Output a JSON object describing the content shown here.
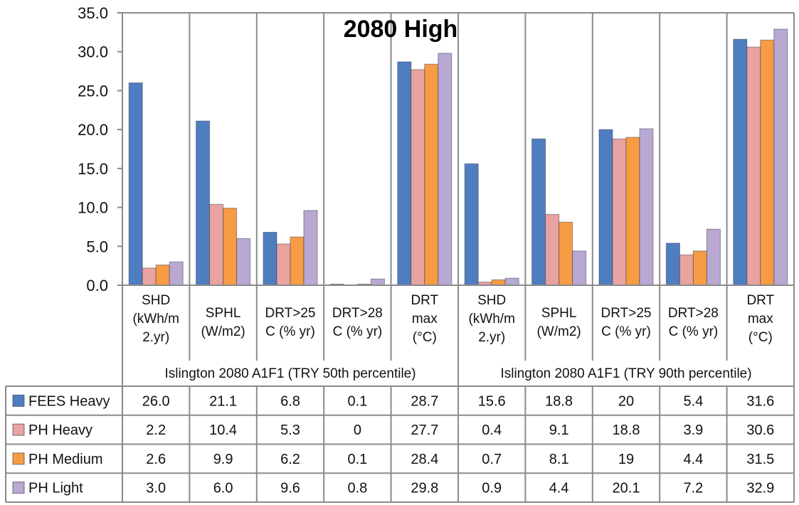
{
  "chart_data": {
    "type": "bar",
    "title": "2080 High",
    "ylim": [
      0,
      35
    ],
    "yticks": [
      "0.0",
      "5.0",
      "10.0",
      "15.0",
      "20.0",
      "25.0",
      "30.0",
      "35.0"
    ],
    "grid": "vertical category separators",
    "categories": [
      [
        "SHD",
        "(kWh/m",
        "2.yr)"
      ],
      [
        "SPHL",
        "(W/m2)"
      ],
      [
        "DRT>25",
        "C (% yr)"
      ],
      [
        "DRT>28",
        "C (% yr)"
      ],
      [
        "DRT",
        "max",
        "(°C)"
      ],
      [
        "SHD",
        "(kWh/m",
        "2.yr)"
      ],
      [
        "SPHL",
        "(W/m2)"
      ],
      [
        "DRT>25",
        "C (% yr)"
      ],
      [
        "DRT>28",
        "C  (% yr)"
      ],
      [
        "DRT",
        "max",
        "(°C)"
      ]
    ],
    "groups": [
      "Islington 2080 A1F1 (TRY 50th percentile)",
      "Islington 2080 A1F1 (TRY 90th percentile)"
    ],
    "series": [
      {
        "name": "FEES Heavy",
        "color": "#4f7ec0",
        "values": [
          26.0,
          21.1,
          6.8,
          0.1,
          28.7,
          15.6,
          18.8,
          20,
          5.4,
          31.6
        ],
        "labels": [
          "26.0",
          "21.1",
          "6.8",
          "0.1",
          "28.7",
          "15.6",
          "18.8",
          "20",
          "5.4",
          "31.6"
        ]
      },
      {
        "name": "PH Heavy",
        "color": "#e9a3a0",
        "values": [
          2.2,
          10.4,
          5.3,
          0,
          27.7,
          0.4,
          9.1,
          18.8,
          3.9,
          30.6
        ],
        "labels": [
          "2.2",
          "10.4",
          "5.3",
          "0",
          "27.7",
          "0.4",
          "9.1",
          "18.8",
          "3.9",
          "30.6"
        ]
      },
      {
        "name": "PH Medium",
        "color": "#f79c45",
        "values": [
          2.6,
          9.9,
          6.2,
          0.1,
          28.4,
          0.7,
          8.1,
          19,
          4.4,
          31.5
        ],
        "labels": [
          "2.6",
          "9.9",
          "6.2",
          "0.1",
          "28.4",
          "0.7",
          "8.1",
          "19",
          "4.4",
          "31.5"
        ]
      },
      {
        "name": "PH Light",
        "color": "#b8a8d2",
        "values": [
          3.0,
          6.0,
          9.6,
          0.8,
          29.8,
          0.9,
          4.4,
          20.1,
          7.2,
          32.9
        ],
        "labels": [
          "3.0",
          "6.0",
          "9.6",
          "0.8",
          "29.8",
          "0.9",
          "4.4",
          "20.1",
          "7.2",
          "32.9"
        ]
      }
    ]
  }
}
